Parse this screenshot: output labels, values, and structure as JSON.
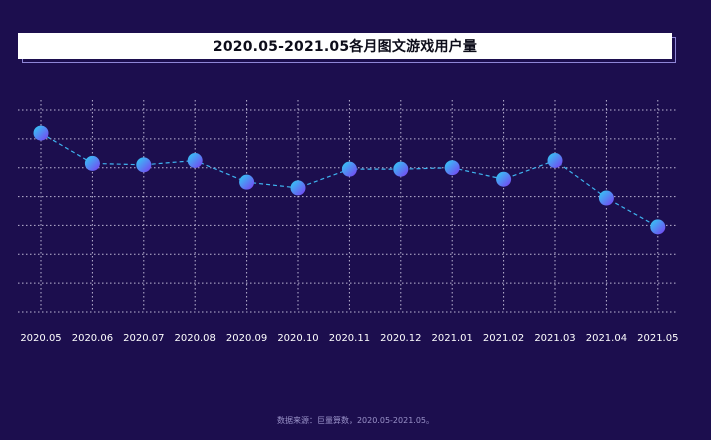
{
  "chart_data": {
    "type": "line",
    "title": "2020.05-2021.05各月图文游戏用户量",
    "categories": [
      "2020.05",
      "2020.06",
      "2020.07",
      "2020.08",
      "2020.09",
      "2020.10",
      "2020.11",
      "2020.12",
      "2021.01",
      "2021.02",
      "2021.03",
      "2021.04",
      "2021.05"
    ],
    "values": [
      6.2,
      5.15,
      5.1,
      5.25,
      4.5,
      4.3,
      4.95,
      4.95,
      5.0,
      4.6,
      5.25,
      3.95,
      2.95
    ],
    "ylim": [
      0,
      7
    ],
    "grid": true,
    "line_style": "dashed",
    "line_color": "#3fb4f0",
    "marker_color_start": "#2fd1f5",
    "marker_color_end": "#7a3cf2",
    "grid_color": "#d8d4ec"
  },
  "source_note": "数据来源：巨量算数，2020.05-2021.05。"
}
